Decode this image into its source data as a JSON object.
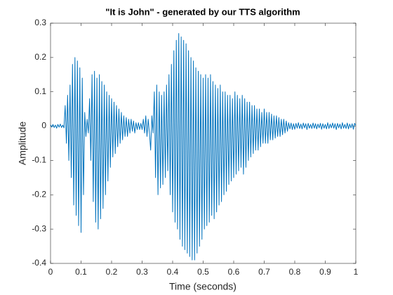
{
  "chart_data": {
    "type": "line",
    "title": "\"It is John\" - generated by our TTS algorithm",
    "xlabel": "Time (seconds)",
    "ylabel": "Amplitude",
    "color": "#0072bd",
    "xlim": [
      0,
      1
    ],
    "ylim": [
      -0.4,
      0.3
    ],
    "xticks": [
      0,
      0.1,
      0.2,
      0.3,
      0.4,
      0.5,
      0.6,
      0.7,
      0.8,
      0.9,
      1
    ],
    "yticks": [
      -0.4,
      -0.3,
      -0.2,
      -0.1,
      0,
      0.1,
      0.2,
      0.3
    ],
    "x": [
      0,
      0.004,
      0.008,
      0.012,
      0.016,
      0.02,
      0.024,
      0.028,
      0.032,
      0.036,
      0.04,
      0.044,
      0.048,
      0.052,
      0.056,
      0.06,
      0.064,
      0.068,
      0.072,
      0.076,
      0.08,
      0.084,
      0.088,
      0.092,
      0.096,
      0.1,
      0.104,
      0.108,
      0.112,
      0.116,
      0.12,
      0.124,
      0.128,
      0.132,
      0.136,
      0.14,
      0.144,
      0.148,
      0.152,
      0.156,
      0.16,
      0.164,
      0.168,
      0.172,
      0.176,
      0.18,
      0.184,
      0.188,
      0.192,
      0.196,
      0.2,
      0.204,
      0.208,
      0.212,
      0.216,
      0.22,
      0.224,
      0.228,
      0.232,
      0.236,
      0.24,
      0.244,
      0.248,
      0.252,
      0.256,
      0.26,
      0.264,
      0.268,
      0.272,
      0.276,
      0.28,
      0.284,
      0.288,
      0.292,
      0.296,
      0.3,
      0.304,
      0.308,
      0.312,
      0.316,
      0.32,
      0.324,
      0.328,
      0.332,
      0.336,
      0.34,
      0.344,
      0.348,
      0.352,
      0.356,
      0.36,
      0.364,
      0.368,
      0.372,
      0.376,
      0.38,
      0.384,
      0.388,
      0.392,
      0.396,
      0.4,
      0.404,
      0.408,
      0.412,
      0.416,
      0.42,
      0.424,
      0.428,
      0.432,
      0.436,
      0.44,
      0.444,
      0.448,
      0.452,
      0.456,
      0.46,
      0.464,
      0.468,
      0.472,
      0.476,
      0.48,
      0.484,
      0.488,
      0.492,
      0.496,
      0.5,
      0.504,
      0.508,
      0.512,
      0.516,
      0.52,
      0.524,
      0.528,
      0.532,
      0.536,
      0.54,
      0.544,
      0.548,
      0.552,
      0.556,
      0.56,
      0.564,
      0.568,
      0.572,
      0.576,
      0.58,
      0.584,
      0.588,
      0.592,
      0.596,
      0.6,
      0.604,
      0.608,
      0.612,
      0.616,
      0.62,
      0.624,
      0.628,
      0.632,
      0.636,
      0.64,
      0.644,
      0.648,
      0.652,
      0.656,
      0.66,
      0.664,
      0.668,
      0.672,
      0.676,
      0.68,
      0.684,
      0.688,
      0.692,
      0.696,
      0.7,
      0.704,
      0.708,
      0.712,
      0.716,
      0.72,
      0.724,
      0.728,
      0.732,
      0.736,
      0.74,
      0.744,
      0.748,
      0.752,
      0.756,
      0.76,
      0.764,
      0.768,
      0.772,
      0.776,
      0.78,
      0.784,
      0.788,
      0.792,
      0.796,
      0.8,
      0.804,
      0.808,
      0.812,
      0.816,
      0.82,
      0.824,
      0.828,
      0.832,
      0.836,
      0.84,
      0.844,
      0.848,
      0.852,
      0.856,
      0.86,
      0.864,
      0.868,
      0.872,
      0.876,
      0.88,
      0.884,
      0.888,
      0.892,
      0.896,
      0.9,
      0.904,
      0.908,
      0.912,
      0.916,
      0.92,
      0.924,
      0.928,
      0.932,
      0.936,
      0.94,
      0.944,
      0.948,
      0.952,
      0.956,
      0.96,
      0.964,
      0.968,
      0.972,
      0.976,
      0.98,
      0.984,
      0.988,
      0.992,
      0.996,
      1
    ],
    "values": [
      0.004,
      -0.003,
      0.005,
      -0.004,
      0.003,
      -0.006,
      0.005,
      -0.003,
      0.006,
      -0.004,
      0.003,
      -0.005,
      0.06,
      -0.05,
      0.09,
      -0.1,
      0.12,
      -0.15,
      0.18,
      -0.23,
      0.2,
      -0.26,
      0.19,
      -0.29,
      0.17,
      -0.31,
      0.14,
      -0.2,
      0.04,
      -0.03,
      0.02,
      -0.02,
      0.08,
      -0.1,
      0.15,
      -0.22,
      0.16,
      -0.28,
      0.14,
      -0.3,
      0.15,
      -0.27,
      0.13,
      -0.24,
      0.12,
      -0.2,
      0.1,
      -0.16,
      0.09,
      -0.12,
      0.08,
      -0.09,
      0.07,
      -0.08,
      0.06,
      -0.06,
      0.05,
      -0.05,
      0.04,
      -0.04,
      0.03,
      -0.03,
      0.025,
      -0.03,
      0.02,
      -0.02,
      0.02,
      -0.015,
      0.015,
      -0.02,
      0.01,
      -0.01,
      0.01,
      -0.01,
      0.008,
      -0.01,
      0.02,
      -0.02,
      0.03,
      -0.03,
      0.02,
      -0.02,
      -0.07,
      0.03,
      -0.02,
      0.1,
      -0.15,
      0.12,
      -0.2,
      0.1,
      -0.18,
      0.09,
      -0.17,
      0.1,
      -0.15,
      0.12,
      -0.13,
      0.15,
      -0.2,
      0.18,
      -0.25,
      0.22,
      -0.28,
      0.25,
      -0.3,
      0.27,
      -0.33,
      0.26,
      -0.35,
      0.25,
      -0.36,
      0.24,
      -0.37,
      0.22,
      -0.38,
      0.2,
      -0.39,
      0.19,
      -0.39,
      0.17,
      -0.37,
      0.16,
      -0.35,
      0.15,
      -0.33,
      0.14,
      -0.3,
      0.15,
      -0.29,
      0.14,
      -0.28,
      0.15,
      -0.26,
      0.13,
      -0.27,
      0.12,
      -0.25,
      0.11,
      -0.23,
      0.12,
      -0.22,
      0.1,
      -0.2,
      0.1,
      -0.19,
      0.09,
      -0.17,
      0.09,
      -0.16,
      0.08,
      -0.15,
      0.1,
      -0.14,
      0.09,
      -0.13,
      0.08,
      -0.12,
      0.09,
      -0.14,
      0.08,
      -0.12,
      0.07,
      -0.1,
      0.07,
      -0.09,
      0.06,
      -0.08,
      0.06,
      -0.07,
      0.05,
      -0.07,
      0.05,
      -0.06,
      0.04,
      -0.05,
      0.05,
      -0.05,
      0.04,
      -0.05,
      0.04,
      -0.04,
      0.035,
      -0.04,
      0.03,
      -0.035,
      0.03,
      -0.03,
      0.025,
      -0.03,
      0.02,
      -0.025,
      0.02,
      -0.02,
      0.015,
      -0.015,
      0.01,
      -0.008,
      0.009,
      -0.01,
      0.007,
      -0.009,
      0.008,
      -0.006,
      0.01,
      -0.007,
      0.006,
      -0.008,
      0.009,
      -0.005,
      0.007,
      -0.01,
      0.008,
      -0.006,
      0.005,
      -0.007,
      0.009,
      -0.006,
      0.007,
      -0.008,
      0.006,
      -0.005,
      0.008,
      -0.009,
      0.007,
      -0.006,
      0.005,
      -0.008,
      0.01,
      -0.007,
      0.006,
      -0.005,
      0.009,
      -0.006,
      0.007,
      -0.01,
      0.008,
      -0.005,
      0.006,
      -0.008,
      0.01,
      -0.006,
      0.005,
      -0.007,
      0.009,
      -0.008,
      0.006,
      -0.005,
      0.007,
      -0.009,
      0.008,
      0.002
    ]
  }
}
